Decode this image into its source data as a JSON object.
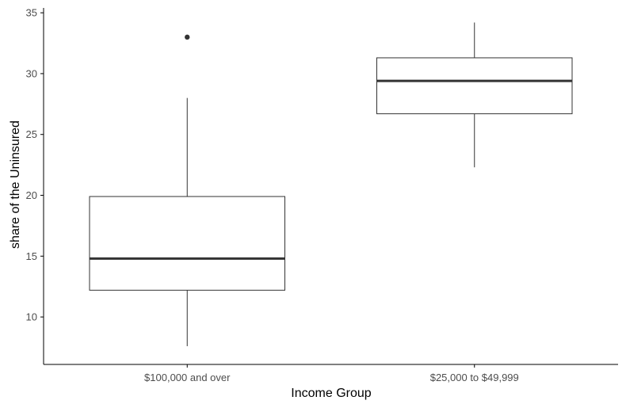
{
  "chart_data": {
    "type": "boxplot",
    "xlabel": "Income Group",
    "ylabel": "share of the Uninsured",
    "categories": [
      "$100,000 and over",
      "$25,000 to $49,999"
    ],
    "ylim": [
      6.1,
      35.4
    ],
    "yticks": [
      10,
      15,
      20,
      25,
      30,
      35
    ],
    "grid": false,
    "legend": "none",
    "series": [
      {
        "category": "$100,000 and over",
        "whisker_low": 7.6,
        "q1": 12.2,
        "median": 14.8,
        "q3": 19.9,
        "whisker_high": 28.0,
        "outliers": [
          33.0
        ]
      },
      {
        "category": "$25,000 to $49,999",
        "whisker_low": 22.3,
        "q1": 26.7,
        "median": 29.4,
        "q3": 31.3,
        "whisker_high": 34.2,
        "outliers": []
      }
    ],
    "colors": {
      "box_fill": "#ffffff",
      "box_stroke": "#333333",
      "median": "#333333",
      "axis": "#000000",
      "tick_label": "#4d4d4d",
      "outlier": "#333333"
    }
  }
}
